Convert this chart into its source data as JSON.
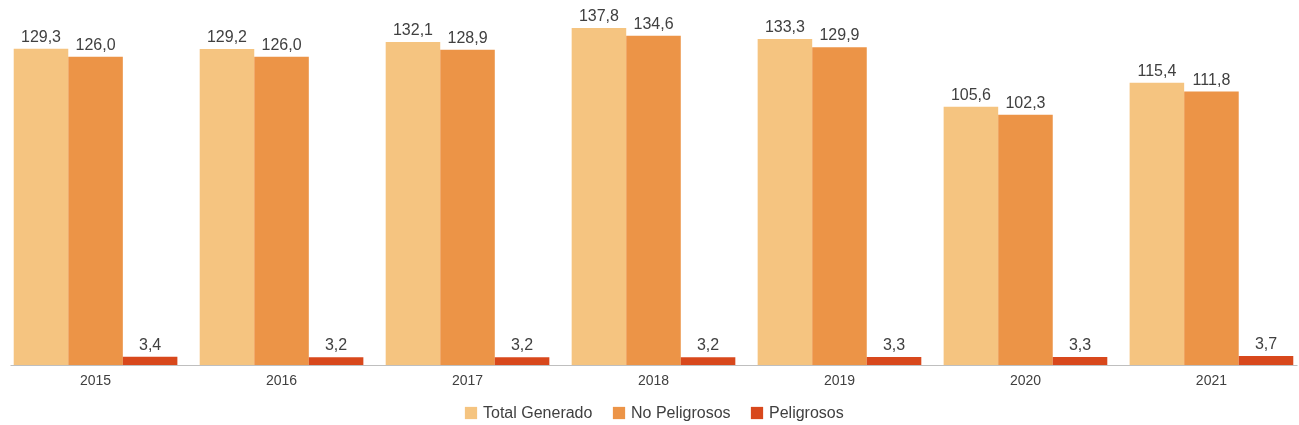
{
  "chart_data": {
    "type": "bar",
    "categories": [
      "2015",
      "2016",
      "2017",
      "2018",
      "2019",
      "2020",
      "2021"
    ],
    "series": [
      {
        "name": "Total Generado",
        "color": "#f5c480",
        "values": [
          129.3,
          129.2,
          132.1,
          137.8,
          133.3,
          105.6,
          115.4
        ],
        "value_labels": [
          "129,3",
          "129,2",
          "132,1",
          "137,8",
          "133,3",
          "105,6",
          "115,4"
        ]
      },
      {
        "name": "No Peligrosos",
        "color": "#ec9447",
        "values": [
          126.0,
          126.0,
          128.9,
          134.6,
          129.9,
          102.3,
          111.8
        ],
        "value_labels": [
          "126,0",
          "126,0",
          "128,9",
          "134,6",
          "129,9",
          "102,3",
          "111,8"
        ]
      },
      {
        "name": "Peligrosos",
        "color": "#d8481c",
        "values": [
          3.4,
          3.2,
          3.2,
          3.2,
          3.3,
          3.3,
          3.7
        ],
        "value_labels": [
          "3,4",
          "3,2",
          "3,2",
          "3,2",
          "3,3",
          "3,3",
          "3,7"
        ]
      }
    ],
    "legend": "bottom",
    "grid": false
  }
}
